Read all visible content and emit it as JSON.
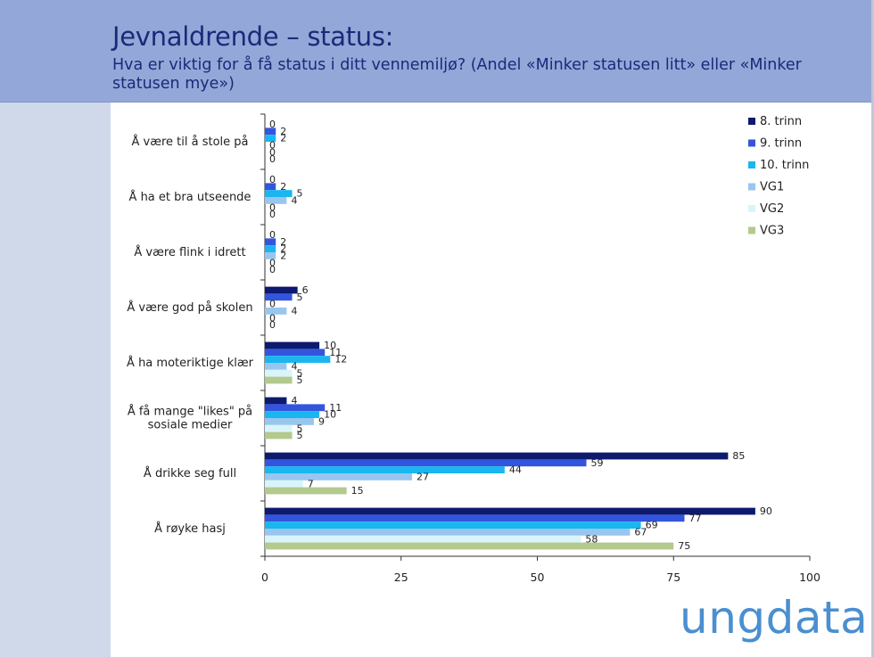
{
  "header": {
    "title": "Jevnaldrende – status:",
    "subtitle": "Hva er viktig for å få status i ditt vennemiljø? (Andel «Minker statusen litt» eller «Minker statusen mye»)"
  },
  "logo": {
    "text": "ungdata",
    "color": "#4a8fd0"
  },
  "chart_data": {
    "type": "bar",
    "orientation": "horizontal",
    "title": "",
    "xlabel": "",
    "ylabel": "",
    "xlim": [
      0,
      100
    ],
    "xticks": [
      0,
      25,
      50,
      75,
      100
    ],
    "grid": false,
    "legend_position": "top-right",
    "categories": [
      "Å være til å stole på",
      "Å ha et bra utseende",
      "Å være flink i idrett",
      "Å være god på skolen",
      "Å ha moteriktige klær",
      "Å få mange \"likes\" på sosiale medier",
      "Å drikke seg full",
      "Å røyke hasj"
    ],
    "series": [
      {
        "name": "8. trinn",
        "color": "#0d1a6e",
        "values": [
          0,
          0,
          0,
          6,
          10,
          4,
          85,
          90
        ]
      },
      {
        "name": "9. trinn",
        "color": "#3355dd",
        "values": [
          2,
          2,
          2,
          5,
          11,
          11,
          59,
          77
        ]
      },
      {
        "name": "10. trinn",
        "color": "#19b6f0",
        "values": [
          2,
          5,
          2,
          0,
          12,
          10,
          44,
          69
        ]
      },
      {
        "name": "VG1",
        "color": "#98c6ef",
        "values": [
          0,
          4,
          2,
          4,
          4,
          9,
          27,
          67
        ]
      },
      {
        "name": "VG2",
        "color": "#d9f5fa",
        "values": [
          0,
          0,
          0,
          0,
          5,
          5,
          7,
          58
        ]
      },
      {
        "name": "VG3",
        "color": "#b3c98e",
        "values": [
          0,
          0,
          0,
          0,
          5,
          5,
          15,
          75
        ]
      }
    ]
  }
}
